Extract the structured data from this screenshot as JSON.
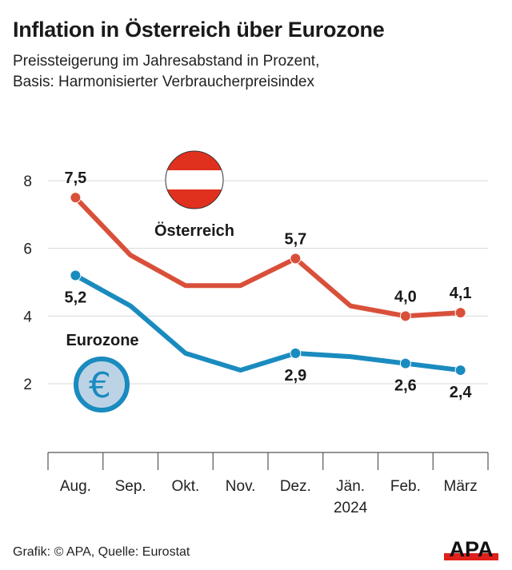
{
  "title": "Inflation in Österreich über Eurozone",
  "subtitle_lines": [
    "Preissteigerung im Jahresabstand in Prozent,",
    "Basis: Harmonisierter Verbraucherpreisindex"
  ],
  "footer": "Grafik: © APA, Quelle: Eurostat",
  "logo_text": "APA",
  "chart_data": {
    "type": "line",
    "categories": [
      "Aug.",
      "Sep.",
      "Okt.",
      "Nov.",
      "Dez.",
      "Jän.",
      "Feb.",
      "März"
    ],
    "category_sublabels": [
      "",
      "",
      "",
      "",
      "",
      "2024",
      "",
      ""
    ],
    "ylim": [
      0,
      8.8
    ],
    "yticks": [
      "2",
      "4",
      "6",
      "8"
    ],
    "grid": true,
    "series": [
      {
        "name": "Österreich",
        "color": "#d9503a",
        "icon": "austria-flag-icon",
        "values": [
          7.5,
          5.8,
          4.9,
          4.9,
          5.7,
          4.3,
          4.0,
          4.1
        ],
        "labels": [
          "7,5",
          "",
          "",
          "",
          "5,7",
          "",
          "4,0",
          "4,1"
        ]
      },
      {
        "name": "Eurozone",
        "color": "#1a8bbf",
        "icon": "euro-icon",
        "values": [
          5.2,
          4.3,
          2.9,
          2.4,
          2.9,
          2.8,
          2.6,
          2.4
        ],
        "labels": [
          "5,2",
          "",
          "",
          "",
          "2,9",
          "",
          "2,6",
          "2,4"
        ]
      }
    ]
  }
}
